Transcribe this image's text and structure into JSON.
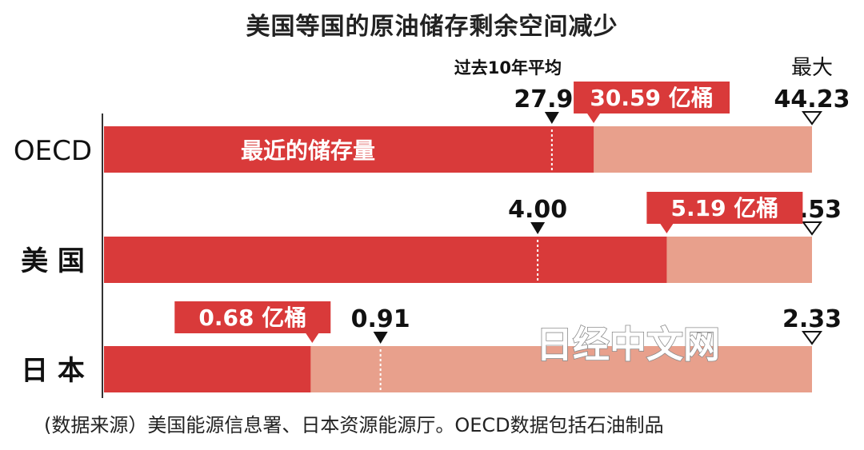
{
  "title": "美国等国的原油储存剩余空间减少",
  "source": "(数据来源）美国能源信息署、日本资源能源厅。OECD数据包括石油制品",
  "watermark": "日经中文网",
  "colors": {
    "current": "#d93a3a",
    "remaining": "#e8a08c",
    "text": "#111111",
    "axis": "#333333"
  },
  "chart_data": {
    "type": "bar",
    "title": "美国等国的原油储存剩余空间减少",
    "categories": [
      "OECD",
      "美 国",
      "日 本"
    ],
    "avg_label": "过去10年平均",
    "max_label": "最大",
    "inner_label": "最近的储存量",
    "unit": "亿桶",
    "series": [
      {
        "name": "最近的储存量",
        "values": [
          30.59,
          5.19,
          0.68
        ]
      }
    ],
    "averages": [
      27.98,
      4.0,
      0.91
    ],
    "maximums": [
      44.23,
      6.53,
      2.33
    ],
    "current_labels": [
      "30.59 亿桶",
      "5.19 亿桶",
      "0.68 亿桶"
    ],
    "average_labels": [
      "27.98",
      "4.00",
      "0.91"
    ],
    "maximum_labels": [
      "44.23",
      "6.53",
      "2.33"
    ]
  }
}
